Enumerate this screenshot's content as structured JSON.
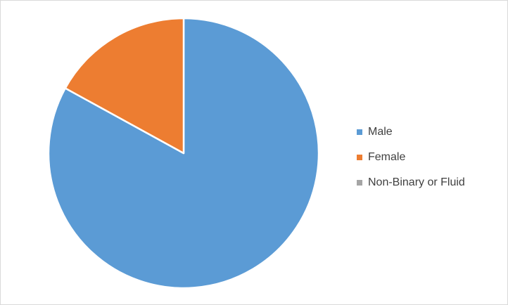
{
  "chart_data": {
    "type": "pie",
    "title": "",
    "start_angle_deg": 0,
    "direction": "clockwise",
    "legend_position": "right",
    "slices": [
      {
        "label": "Male",
        "value": 83,
        "color": "#5B9BD5"
      },
      {
        "label": "Female",
        "value": 17,
        "color": "#ED7D31"
      },
      {
        "label": "Non-Binary or Fluid",
        "value": 0,
        "color": "#A5A5A5"
      }
    ]
  }
}
